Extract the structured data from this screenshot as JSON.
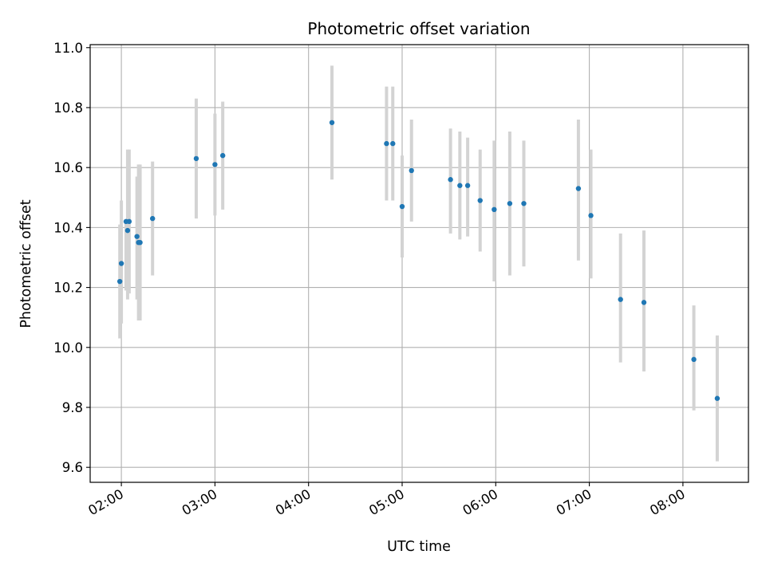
{
  "chart_data": {
    "type": "scatter",
    "title": "Photometric offset variation",
    "xlabel": "UTC time",
    "ylabel": "Photometric offset",
    "xlim": [
      "01:40",
      "08:42"
    ],
    "ylim": [
      9.55,
      11.01
    ],
    "x_ticks": [
      "02:00",
      "03:00",
      "04:00",
      "05:00",
      "06:00",
      "07:00",
      "08:00"
    ],
    "y_ticks": [
      "9.6",
      "9.8",
      "10.0",
      "10.2",
      "10.4",
      "10.6",
      "10.8",
      "11.0"
    ],
    "grid": true,
    "colors": {
      "marker": "#1f77b4",
      "error_bar": "#d3d3d3",
      "grid": "#b0b0b0"
    },
    "series": [
      {
        "points": [
          {
            "time": "01:59",
            "y": 10.22,
            "lo": 10.03,
            "hi": 10.41
          },
          {
            "time": "02:00",
            "y": 10.28,
            "lo": 10.08,
            "hi": 10.49
          },
          {
            "time": "02:03",
            "y": 10.42,
            "lo": 10.19,
            "hi": 10.42
          },
          {
            "time": "02:04",
            "y": 10.39,
            "lo": 10.16,
            "hi": 10.66
          },
          {
            "time": "02:05",
            "y": 10.42,
            "lo": 10.18,
            "hi": 10.66
          },
          {
            "time": "02:10",
            "y": 10.37,
            "lo": 10.16,
            "hi": 10.57
          },
          {
            "time": "02:11",
            "y": 10.35,
            "lo": 10.09,
            "hi": 10.61
          },
          {
            "time": "02:12",
            "y": 10.35,
            "lo": 10.09,
            "hi": 10.61
          },
          {
            "time": "02:20",
            "y": 10.43,
            "lo": 10.24,
            "hi": 10.62
          },
          {
            "time": "02:48",
            "y": 10.63,
            "lo": 10.43,
            "hi": 10.83
          },
          {
            "time": "03:00",
            "y": 10.61,
            "lo": 10.44,
            "hi": 10.78
          },
          {
            "time": "03:05",
            "y": 10.64,
            "lo": 10.46,
            "hi": 10.82
          },
          {
            "time": "04:15",
            "y": 10.75,
            "lo": 10.56,
            "hi": 10.94
          },
          {
            "time": "04:50",
            "y": 10.68,
            "lo": 10.49,
            "hi": 10.87
          },
          {
            "time": "04:54",
            "y": 10.68,
            "lo": 10.49,
            "hi": 10.87
          },
          {
            "time": "05:00",
            "y": 10.47,
            "lo": 10.3,
            "hi": 10.64
          },
          {
            "time": "05:06",
            "y": 10.59,
            "lo": 10.42,
            "hi": 10.76
          },
          {
            "time": "05:31",
            "y": 10.56,
            "lo": 10.38,
            "hi": 10.73
          },
          {
            "time": "05:37",
            "y": 10.54,
            "lo": 10.36,
            "hi": 10.72
          },
          {
            "time": "05:42",
            "y": 10.54,
            "lo": 10.37,
            "hi": 10.7
          },
          {
            "time": "05:50",
            "y": 10.49,
            "lo": 10.32,
            "hi": 10.66
          },
          {
            "time": "05:59",
            "y": 10.46,
            "lo": 10.22,
            "hi": 10.69
          },
          {
            "time": "06:09",
            "y": 10.48,
            "lo": 10.24,
            "hi": 10.72
          },
          {
            "time": "06:18",
            "y": 10.48,
            "lo": 10.27,
            "hi": 10.69
          },
          {
            "time": "06:53",
            "y": 10.53,
            "lo": 10.29,
            "hi": 10.76
          },
          {
            "time": "07:01",
            "y": 10.44,
            "lo": 10.23,
            "hi": 10.66
          },
          {
            "time": "07:20",
            "y": 10.16,
            "lo": 9.95,
            "hi": 10.38
          },
          {
            "time": "07:35",
            "y": 10.15,
            "lo": 9.92,
            "hi": 10.39
          },
          {
            "time": "08:07",
            "y": 9.96,
            "lo": 9.79,
            "hi": 10.14
          },
          {
            "time": "08:22",
            "y": 9.83,
            "lo": 9.62,
            "hi": 10.04
          }
        ]
      }
    ]
  }
}
